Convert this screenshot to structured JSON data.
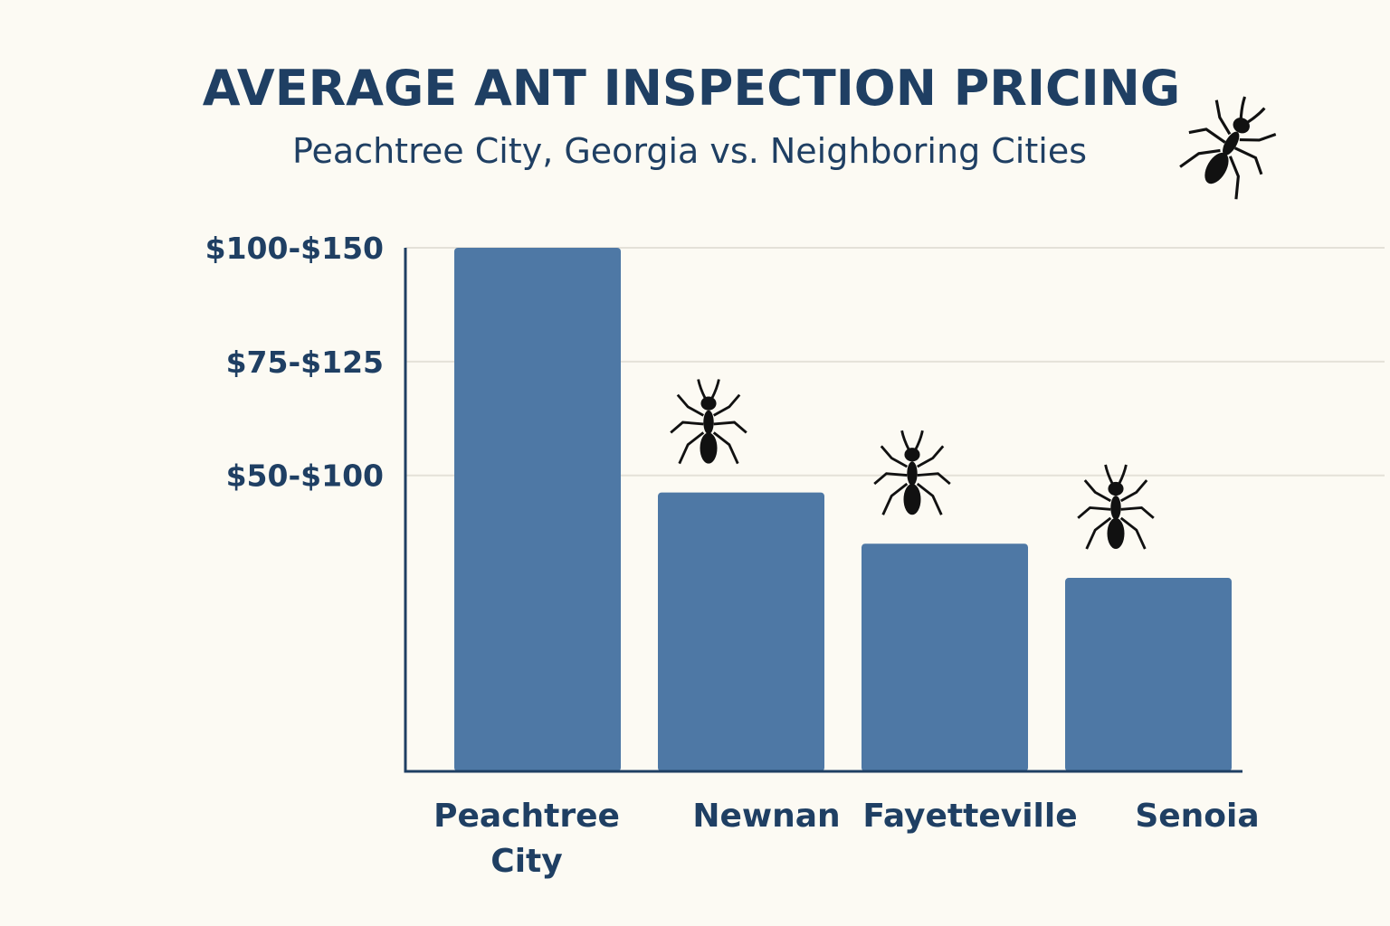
{
  "chart_data": {
    "type": "bar",
    "title": "AVERAGE ANT INSPECTION PRICING",
    "subtitle": "Peachtree City, Georgia vs. Neighboring Cities",
    "xlabel": "",
    "ylabel": "",
    "categories": [
      [
        "Peachtree",
        "City"
      ],
      [
        "Newnan"
      ],
      [
        "Fayetteville"
      ],
      [
        "Senoia"
      ]
    ],
    "y_tick_labels": [
      "$100-$150",
      "$75-$125",
      "$50-$100"
    ],
    "y_tick_positions": [
      3,
      2,
      1
    ],
    "ylim": [
      -1.6,
      3
    ],
    "values": [
      3,
      0.85,
      0.4,
      0.1
    ],
    "bar_color": "#4e78a5",
    "text_color": "#1f3f63",
    "grid": true,
    "legend": "none",
    "decorations": [
      "ant-icon"
    ]
  }
}
